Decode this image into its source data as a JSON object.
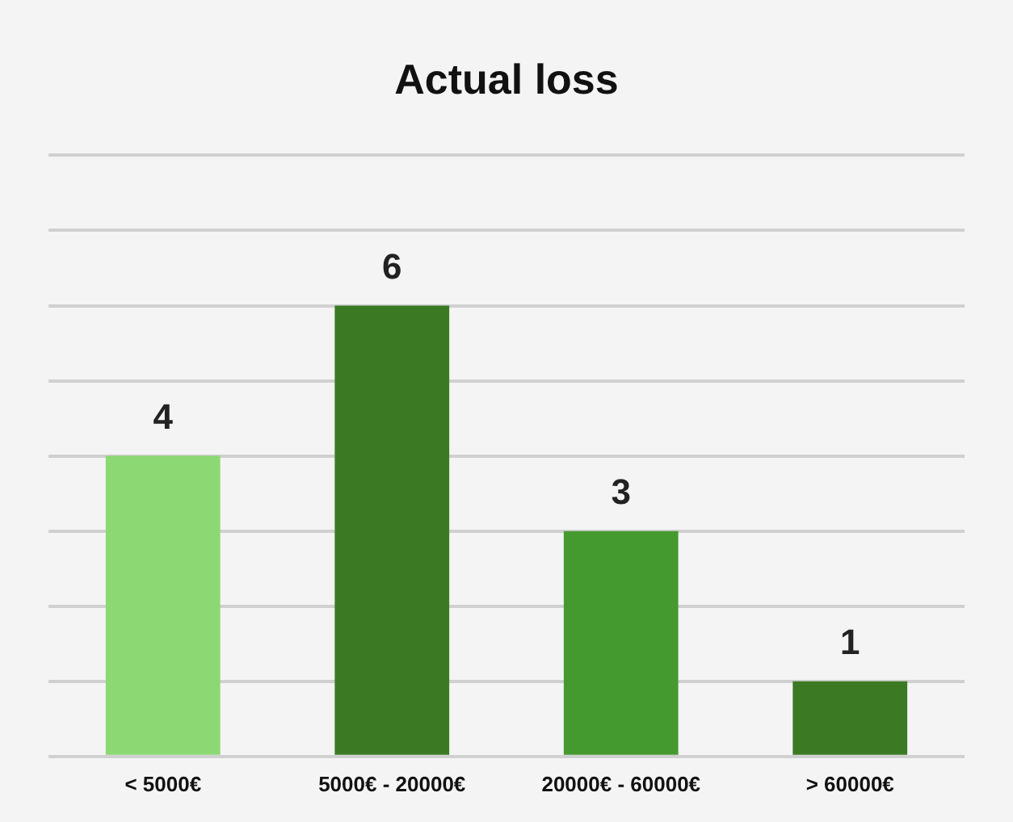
{
  "chart_data": {
    "type": "bar",
    "title": "Actual loss",
    "categories": [
      "< 5000€",
      "5000€ - 20000€",
      "20000€ - 60000€",
      "> 60000€"
    ],
    "values": [
      4,
      6,
      3,
      1
    ],
    "colors": [
      "#8cd872",
      "#3b7a23",
      "#459a2f",
      "#3b7a23"
    ],
    "ylim": [
      0,
      8
    ],
    "yticks": [
      {
        "value": 0,
        "label": null
      },
      {
        "value": 1,
        "label": null
      },
      {
        "value": 2,
        "label": null
      },
      {
        "value": 3,
        "label": null
      },
      {
        "value": 4,
        "label": null
      },
      {
        "value": 5,
        "label": null
      },
      {
        "value": 6,
        "label": null
      },
      {
        "value": 7,
        "label": null
      },
      {
        "value": 8,
        "label": null
      }
    ],
    "tick_labels": "x",
    "grid": "y",
    "data_labels": true,
    "legend": false
  }
}
